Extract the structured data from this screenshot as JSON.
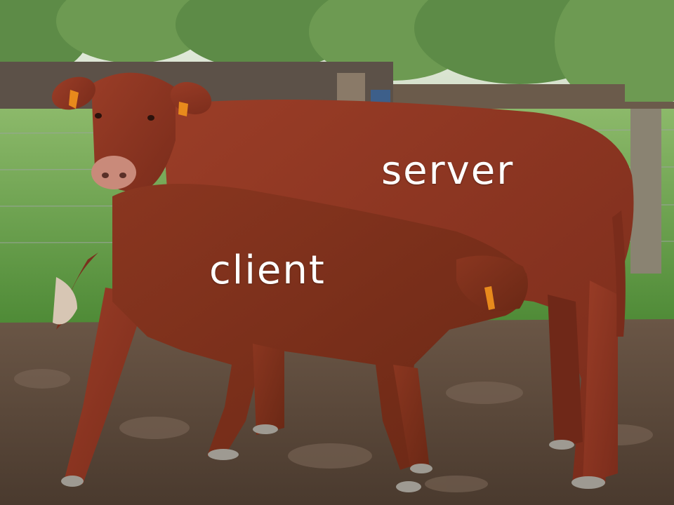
{
  "labels": {
    "server": "server",
    "client": "client"
  },
  "colors": {
    "sky": "#e8efe2",
    "foliage": "#5f8f4a",
    "grass": "#6fa24a",
    "mud": "#5a4637",
    "cow_coat": "#8a3422",
    "calf_coat": "#7a2f1d",
    "ear_tag": "#e88a1c",
    "text": "#ffffff"
  },
  "scene": {
    "subjects": [
      "adult-cow",
      "calf"
    ],
    "setting": "muddy-paddock-with-wire-fence-and-woodpile"
  }
}
